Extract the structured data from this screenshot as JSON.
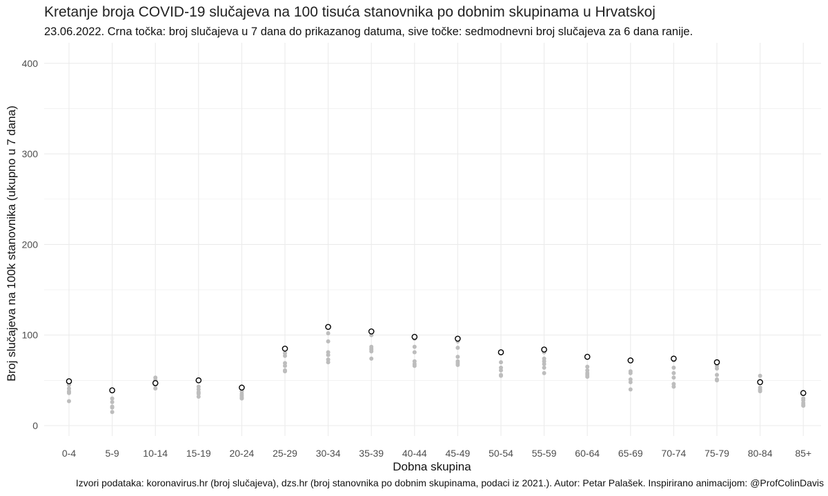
{
  "title": "Kretanje broja COVID-19 slučajeva na 100 tisuća stanovnika po dobnim skupinama u Hrvatskoj",
  "subtitle": "23.06.2022. Crna točka: broj slučajeva u 7 dana do prikazanog datuma, sive točke: sedmodnevni broj slučajeva za 6 dana ranije.",
  "caption": "Izvori podataka: koronavirus.hr (broj slučajeva), dzs.hr (broj stanovnika po dobnim skupinama, podaci iz 2021.). Autor: Petar Palašek. Inspirirano animacijom: @ProfColinDavis",
  "colors": {
    "current": "#000000",
    "history": "#bdbdbd",
    "grid": "#ebebeb",
    "background": "#ffffff"
  },
  "chart_data": {
    "type": "scatter",
    "xlabel": "Dobna skupina",
    "ylabel": "Broj slučajeva na 100k stanovnika (ukupno u 7 dana)",
    "ylim": [
      -10,
      420
    ],
    "y_ticks": [
      0,
      100,
      200,
      300,
      400
    ],
    "grid": true,
    "categories": [
      "0-4",
      "5-9",
      "10-14",
      "15-19",
      "20-24",
      "25-29",
      "30-34",
      "35-39",
      "40-44",
      "45-49",
      "50-54",
      "55-59",
      "60-64",
      "65-69",
      "70-74",
      "75-79",
      "80-84",
      "85+"
    ],
    "series": [
      {
        "values": [
          49,
          39,
          47,
          50,
          42,
          85,
          109,
          104,
          98,
          96,
          81,
          84,
          76,
          72,
          74,
          70,
          48,
          36
        ]
      },
      {
        "values": [
          45,
          38,
          47,
          43,
          42,
          80,
          102,
          100,
          96,
          93,
          80,
          81,
          75,
          72,
          72,
          69,
          49,
          35
        ]
      },
      {
        "values": [
          41,
          30,
          50,
          40,
          38,
          77,
          93,
          87,
          87,
          86,
          70,
          74,
          65,
          60,
          64,
          66,
          55,
          30
        ]
      },
      {
        "values": [
          38,
          26,
          41,
          37,
          35,
          69,
          81,
          85,
          81,
          76,
          64,
          71,
          61,
          58,
          58,
          63,
          42,
          28
        ]
      },
      {
        "values": [
          37,
          21,
          53,
          36,
          33,
          66,
          78,
          82,
          71,
          71,
          61,
          68,
          58,
          51,
          53,
          56,
          40,
          25
        ]
      },
      {
        "values": [
          36,
          20,
          50,
          35,
          31,
          61,
          73,
          84,
          68,
          69,
          56,
          64,
          56,
          48,
          46,
          51,
          38,
          23
        ]
      },
      {
        "values": [
          27,
          15,
          45,
          32,
          30,
          60,
          70,
          74,
          66,
          67,
          55,
          58,
          54,
          40,
          43,
          50,
          39,
          22
        ]
      }
    ]
  }
}
